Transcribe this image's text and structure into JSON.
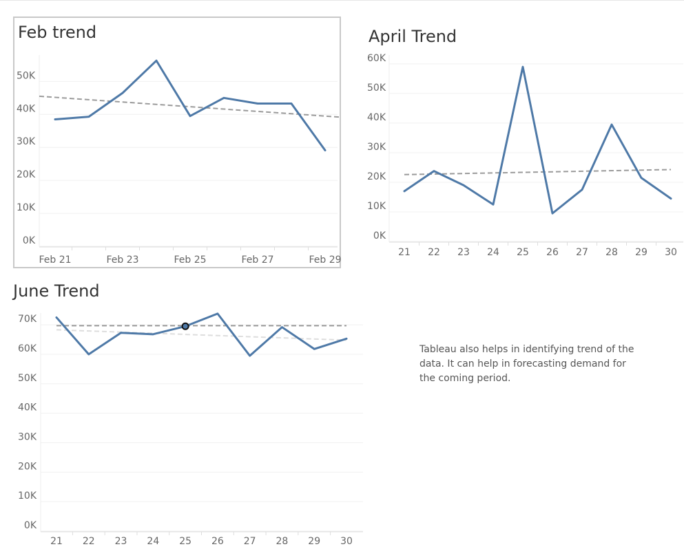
{
  "chart_data": [
    {
      "type": "line",
      "title": "Feb trend",
      "xlabel": "",
      "ylabel": "",
      "x_ticks": [
        "Feb 21",
        "Feb 23",
        "Feb 25",
        "Feb 27",
        "Feb 29"
      ],
      "y_ticks": [
        "0K",
        "10K",
        "20K",
        "30K",
        "40K",
        "50K"
      ],
      "ylim": [
        0,
        58000
      ],
      "series": [
        {
          "x": [
            "Feb 21",
            "Feb 22",
            "Feb 23",
            "Feb 24",
            "Feb 25",
            "Feb 26",
            "Feb 27",
            "Feb 28",
            "Feb 29"
          ],
          "values": [
            38500,
            39300,
            46500,
            56300,
            39500,
            45000,
            43300,
            43300,
            29100
          ],
          "color": "#4e79a7"
        }
      ],
      "trend_lines": [
        {
          "start": 45500,
          "end": 39200,
          "color": "#9a9a9a",
          "style": "dashed"
        }
      ],
      "grid": true,
      "selected": true
    },
    {
      "type": "line",
      "title": "April Trend",
      "xlabel": "",
      "ylabel": "",
      "x_ticks": [
        "21",
        "22",
        "23",
        "24",
        "25",
        "26",
        "27",
        "28",
        "29",
        "30"
      ],
      "y_ticks": [
        "0K",
        "10K",
        "20K",
        "30K",
        "40K",
        "50K",
        "60K"
      ],
      "ylim": [
        0,
        63000
      ],
      "series": [
        {
          "x": [
            "21",
            "22",
            "23",
            "24",
            "25",
            "26",
            "27",
            "28",
            "29",
            "30"
          ],
          "values": [
            17000,
            23800,
            19000,
            12500,
            59000,
            9500,
            17500,
            39500,
            21500,
            14500
          ],
          "color": "#4e79a7"
        }
      ],
      "trend_lines": [
        {
          "start": 22600,
          "end": 24300,
          "color": "#9a9a9a",
          "style": "dashed"
        }
      ],
      "grid": true,
      "selected": false
    },
    {
      "type": "line",
      "title": "June Trend",
      "xlabel": "",
      "ylabel": "",
      "x_ticks": [
        "21",
        "22",
        "23",
        "24",
        "25",
        "26",
        "27",
        "28",
        "29",
        "30"
      ],
      "y_ticks": [
        "0K",
        "10K",
        "20K",
        "30K",
        "40K",
        "50K",
        "60K",
        "70K"
      ],
      "ylim": [
        0,
        74000
      ],
      "series": [
        {
          "x": [
            "21",
            "22",
            "23",
            "24",
            "25",
            "26",
            "27",
            "28",
            "29",
            "30"
          ],
          "values": [
            72500,
            60000,
            67300,
            66800,
            69500,
            73800,
            59500,
            69200,
            61800,
            65300
          ],
          "color": "#4e79a7"
        }
      ],
      "trend_lines": [
        {
          "start": 69700,
          "end": 69700,
          "color": "#9a9a9a",
          "style": "dashed"
        },
        {
          "start": 68300,
          "end": 64800,
          "color": "#dddddd",
          "style": "dashed"
        }
      ],
      "highlight_index": 4,
      "grid": true,
      "selected": false
    }
  ],
  "note": {
    "text": "Tableau also helps in identifying trend of the data. It can help in forecasting demand for the coming period."
  }
}
